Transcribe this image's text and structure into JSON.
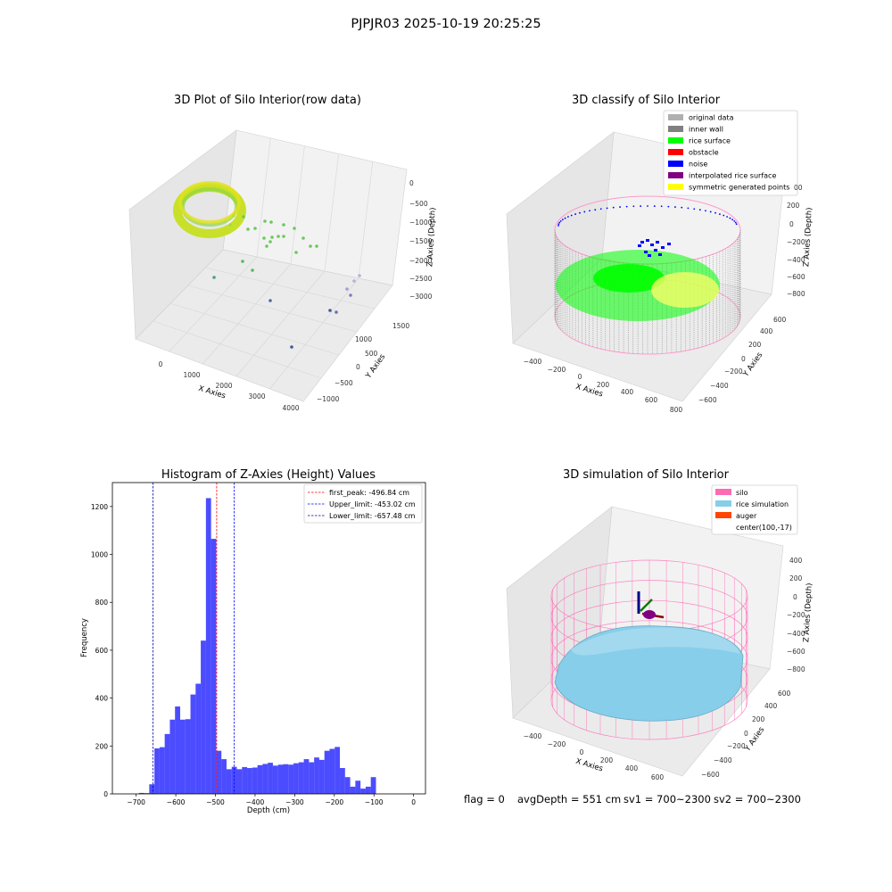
{
  "suptitle": "PJPJR03 2025-10-19 20:25:25",
  "footer": {
    "flag": "flag = 0",
    "avg": "avgDepth = 551 cm",
    "sv1": "sv1 = 700~2300",
    "sv2": "sv2 = 700~2300"
  },
  "chart_data": [
    {
      "type": "scatter",
      "title": "3D Plot of Silo Interior(row data)",
      "xlabel": "X Axies",
      "ylabel": "Y Axies",
      "zlabel": "Z Axies (Depth)",
      "x_ticks": [
        "0",
        "1000",
        "2000",
        "3000",
        "4000"
      ],
      "y_ticks": [
        "−1000",
        "−500",
        "0",
        "500",
        "1000",
        "1500"
      ],
      "z_ticks": [
        "0",
        "−500",
        "−1000",
        "−1500",
        "−2000",
        "−2500",
        "−3000"
      ],
      "description_colors": {
        "cluster": "#c8e02a",
        "outliers": "#6cc95a",
        "deep": "#3d5a99"
      }
    },
    {
      "type": "scatter",
      "title": "3D classify of Silo Interior",
      "zlabel": "Z Axies (Depth)",
      "xlabel": "X Axies",
      "ylabel": "Y Axies",
      "x_ticks": [
        "−400",
        "−200",
        "0",
        "200",
        "400",
        "600",
        "800"
      ],
      "y_ticks": [
        "−600",
        "−400",
        "−200",
        "0",
        "200",
        "400",
        "600"
      ],
      "z_ticks": [
        "200",
        "0",
        "−200",
        "−400",
        "−600",
        "−800"
      ],
      "z_top_partial": "00",
      "legend": [
        {
          "label": "original data",
          "color": "#b0b0b0"
        },
        {
          "label": "inner wall",
          "color": "#808080"
        },
        {
          "label": "rice surface",
          "color": "#00ff00"
        },
        {
          "label": "obstacle",
          "color": "#ff0000"
        },
        {
          "label": "noise",
          "color": "#0000ff"
        },
        {
          "label": "interpolated rice surface",
          "color": "#800080"
        },
        {
          "label": "symmetric generated points",
          "color": "#ffff00"
        }
      ]
    },
    {
      "type": "bar",
      "title": "Histogram of Z-Axies (Height) Values",
      "xlabel": "Depth (cm)",
      "ylabel": "Frequency",
      "xlim": [
        -760,
        30
      ],
      "ylim": [
        0,
        1300
      ],
      "x_ticks": [
        -700,
        -600,
        -500,
        -400,
        -300,
        -200,
        -100,
        0
      ],
      "x_tick_labels": [
        "−700",
        "−600",
        "−500",
        "−400",
        "−300",
        "−200",
        "−100",
        "0"
      ],
      "y_ticks": [
        0,
        200,
        400,
        600,
        800,
        1000,
        1200
      ],
      "bar_color": "#0000ff",
      "bins_left": [
        -693,
        -680,
        -667,
        -654,
        -641,
        -628,
        -615,
        -602,
        -589,
        -576,
        -563,
        -550,
        -537,
        -524,
        -511,
        -498,
        -485,
        -472,
        -459,
        -446,
        -433,
        -420,
        -407,
        -394,
        -381,
        -368,
        -355,
        -342,
        -329,
        -316,
        -303,
        -290,
        -277,
        -264,
        -251,
        -238,
        -225,
        -212,
        -199,
        -186,
        -173,
        -160,
        -147,
        -134,
        -121,
        -108,
        -95,
        -82,
        -69,
        -56,
        -43,
        -30,
        -17
      ],
      "bin_width": 13,
      "counts": [
        4,
        3,
        40,
        190,
        195,
        250,
        310,
        365,
        310,
        312,
        415,
        460,
        640,
        1235,
        1065,
        180,
        145,
        103,
        113,
        103,
        112,
        108,
        110,
        120,
        125,
        130,
        118,
        122,
        124,
        122,
        128,
        132,
        145,
        132,
        152,
        142,
        180,
        188,
        196,
        108,
        70,
        30,
        55,
        22,
        30,
        70,
        0,
        0,
        0,
        0,
        0,
        0,
        0
      ],
      "vlines": [
        {
          "x": -496.84,
          "label": "first_peak: -496.84 cm",
          "color": "#ff0000"
        },
        {
          "x": -453.02,
          "label": "Upper_limit: -453.02 cm",
          "color": "#0000ff"
        },
        {
          "x": -657.48,
          "label": "Lower_limit: -657.48 cm",
          "color": "#0000aa"
        }
      ]
    },
    {
      "type": "scatter",
      "title": "3D simulation of Silo Interior",
      "zlabel": "Z Axies (Depth)",
      "xlabel": "X Axies",
      "ylabel": "Y Axies",
      "x_ticks": [
        "−400",
        "−200",
        "0",
        "200",
        "400",
        "600"
      ],
      "y_ticks": [
        "−600",
        "−400",
        "−200",
        "0",
        "200",
        "400",
        "600"
      ],
      "z_ticks": [
        "400",
        "200",
        "0",
        "−200",
        "−400",
        "−600",
        "−800"
      ],
      "legend": [
        {
          "label": "silo",
          "color": "#ff69b4"
        },
        {
          "label": "rice simulation",
          "color": "#87ceeb"
        },
        {
          "label": "auger",
          "color": "#ff4500"
        },
        {
          "label": "center(100,-17)",
          "color": ""
        }
      ]
    }
  ]
}
